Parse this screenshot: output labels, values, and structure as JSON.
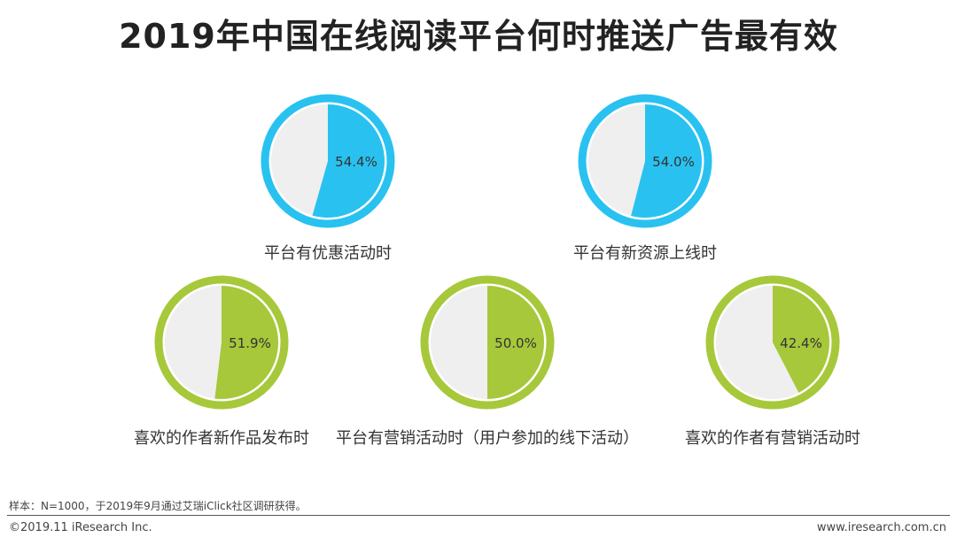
{
  "title": "2019年中国在线阅读平台何时推送广告最有效",
  "colors": {
    "blue": "#29c2f0",
    "green": "#a7c83a",
    "pie_background": "#efefef",
    "text": "#333333"
  },
  "chart_data": {
    "type": "pie",
    "title": "2019年中国在线阅读平台何时推送广告最有效",
    "unit": "%",
    "items": [
      {
        "label": "平台有优惠活动时",
        "value": 54.4,
        "value_label": "54.4%",
        "color": "#29c2f0"
      },
      {
        "label": "平台有新资源上线时",
        "value": 54.0,
        "value_label": "54.0%",
        "color": "#29c2f0"
      },
      {
        "label": "喜欢的作者新作品发布时",
        "value": 51.9,
        "value_label": "51.9%",
        "color": "#a7c83a"
      },
      {
        "label": "平台有营销活动时（用户参加的线下活动）",
        "value": 50.0,
        "value_label": "50.0%",
        "color": "#a7c83a"
      },
      {
        "label": "喜欢的作者有营销活动时",
        "value": 42.4,
        "value_label": "42.4%",
        "color": "#a7c83a"
      }
    ]
  },
  "footer": {
    "note": "样本：N=1000，于2019年9月通过艾瑞iClick社区调研获得。",
    "copyright": "©2019.11 iResearch Inc.",
    "website": "www.iresearch.com.cn"
  }
}
